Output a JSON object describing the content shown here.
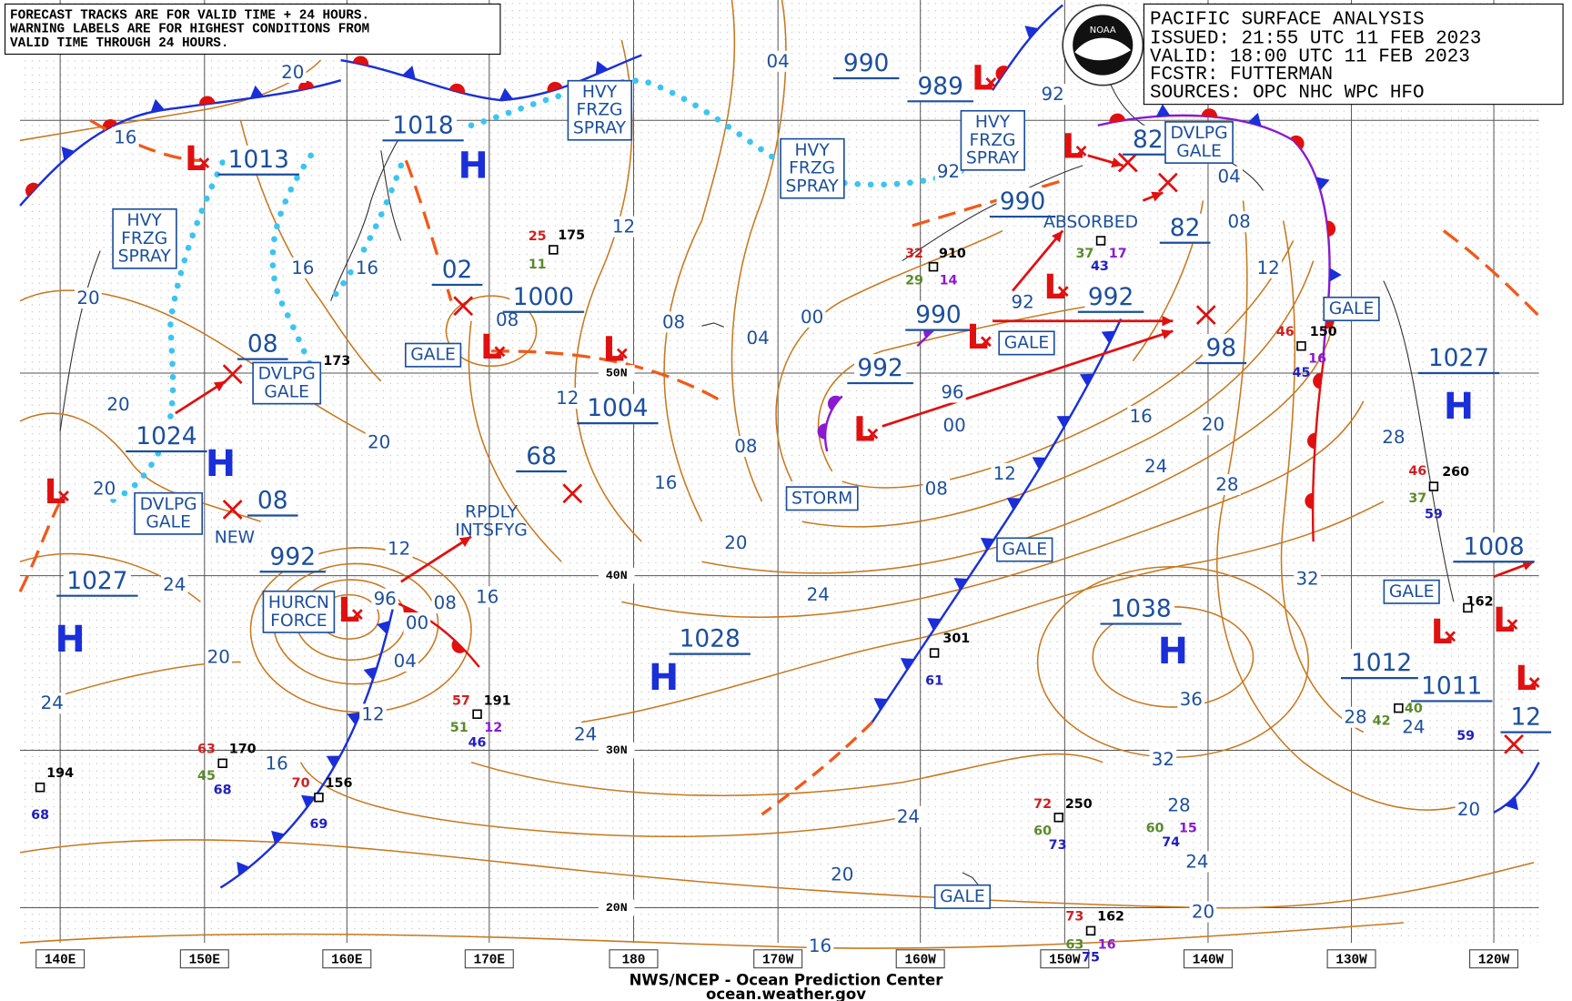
{
  "header": {
    "note": [
      "FORECAST TRACKS ARE FOR VALID TIME + 24 HOURS.",
      "WARNING LABELS ARE FOR HIGHEST CONDITIONS FROM",
      "VALID TIME THROUGH 24 HOURS."
    ],
    "title": [
      "PACIFIC SURFACE ANALYSIS",
      "ISSUED: 21:55 UTC 11 FEB 2023",
      "VALID:  18:00 UTC 11 FEB 2023",
      "FCSTR:  FUTTERMAN",
      "SOURCES: OPC NHC WPC HFO"
    ],
    "logo": "NOAA"
  },
  "centers": [
    "1013",
    "1018",
    "02",
    "1000",
    "08",
    "1024",
    "08",
    "992",
    "1027",
    "1004",
    "68",
    "1028",
    "990",
    "989",
    "990",
    "990",
    "992",
    "992",
    "82",
    "82",
    "98",
    "1027",
    "1008",
    "1038",
    "1012",
    "1011",
    "12"
  ],
  "highs": [
    "H",
    "H",
    "H",
    "H",
    "H",
    "H"
  ],
  "lows": [
    "L",
    "L",
    "L",
    "L",
    "L",
    "L",
    "L",
    "L",
    "L",
    "L",
    "L",
    "L",
    "L"
  ],
  "warnings": [
    {
      "lines": [
        "HVY",
        "FRZG",
        "SPRAY"
      ]
    },
    {
      "lines": [
        "HVY",
        "FRZG",
        "SPRAY"
      ]
    },
    {
      "lines": [
        "HVY",
        "FRZG",
        "SPRAY"
      ]
    },
    {
      "lines": [
        "HVY",
        "FRZG",
        "SPRAY"
      ]
    },
    {
      "lines": [
        "GALE"
      ]
    },
    {
      "lines": [
        "GALE"
      ]
    },
    {
      "lines": [
        "GALE"
      ]
    },
    {
      "lines": [
        "GALE"
      ]
    },
    {
      "lines": [
        "GALE"
      ]
    },
    {
      "lines": [
        "GALE"
      ]
    },
    {
      "lines": [
        "DVLPG",
        "GALE"
      ]
    },
    {
      "lines": [
        "DVLPG",
        "GALE"
      ]
    },
    {
      "lines": [
        "DVLPG",
        "GALE"
      ]
    },
    {
      "lines": [
        "STORM"
      ]
    },
    {
      "lines": [
        "HURCN",
        "FORCE"
      ]
    }
  ],
  "notes": [
    {
      "lines": [
        "RPDLY",
        "INTSFYG"
      ]
    },
    {
      "lines": [
        "ABSORBED"
      ]
    },
    {
      "lines": [
        "NEW"
      ]
    }
  ],
  "isobar_labels": [
    "20",
    "16",
    "20",
    "20",
    "16",
    "16",
    "20",
    "24",
    "20",
    "20",
    "24",
    "16",
    "12",
    "96",
    "00",
    "08",
    "16",
    "04",
    "12",
    "08",
    "12",
    "08",
    "04",
    "04",
    "00",
    "12",
    "08",
    "16",
    "20",
    "24",
    "24",
    "96",
    "00",
    "08",
    "12",
    "16",
    "20",
    "24",
    "28",
    "32",
    "36",
    "32",
    "28",
    "24",
    "24",
    "20",
    "20",
    "16",
    "20",
    "24",
    "28",
    "28",
    "12",
    "08",
    "04",
    "92",
    "92",
    "92"
  ],
  "stations": [
    {
      "text": "175",
      "color": "#000000"
    },
    {
      "text": "25",
      "color": "#d02020"
    },
    {
      "text": "11",
      "color": "#5a8a2a"
    },
    {
      "text": "173",
      "color": "#000000"
    },
    {
      "text": "910",
      "color": "#000000"
    },
    {
      "text": "32",
      "color": "#d02020"
    },
    {
      "text": "29",
      "color": "#5a8a2a"
    },
    {
      "text": "14",
      "color": "#8a1ad0"
    },
    {
      "text": "37",
      "color": "#5a8a2a"
    },
    {
      "text": "43",
      "color": "#2020c0"
    },
    {
      "text": "17",
      "color": "#8a1ad0"
    },
    {
      "text": "150",
      "color": "#000000"
    },
    {
      "text": "46",
      "color": "#d02020"
    },
    {
      "text": "45",
      "color": "#2020c0"
    },
    {
      "text": "16",
      "color": "#8a1ad0"
    },
    {
      "text": "260",
      "color": "#000000"
    },
    {
      "text": "46",
      "color": "#d02020"
    },
    {
      "text": "37",
      "color": "#5a8a2a"
    },
    {
      "text": "59",
      "color": "#2020c0"
    },
    {
      "text": "301",
      "color": "#000000"
    },
    {
      "text": "61",
      "color": "#2020c0"
    },
    {
      "text": "191",
      "color": "#000000"
    },
    {
      "text": "57",
      "color": "#d02020"
    },
    {
      "text": "51",
      "color": "#5a8a2a"
    },
    {
      "text": "12",
      "color": "#8a1ad0"
    },
    {
      "text": "46",
      "color": "#2020c0"
    },
    {
      "text": "170",
      "color": "#000000"
    },
    {
      "text": "63",
      "color": "#d02020"
    },
    {
      "text": "45",
      "color": "#5a8a2a"
    },
    {
      "text": "68",
      "color": "#2020c0"
    },
    {
      "text": "156",
      "color": "#000000"
    },
    {
      "text": "70",
      "color": "#d02020"
    },
    {
      "text": "69",
      "color": "#2020c0"
    },
    {
      "text": "194",
      "color": "#000000"
    },
    {
      "text": "68",
      "color": "#2020c0"
    },
    {
      "text": "250",
      "color": "#000000"
    },
    {
      "text": "72",
      "color": "#d02020"
    },
    {
      "text": "60",
      "color": "#5a8a2a"
    },
    {
      "text": "73",
      "color": "#2020c0"
    },
    {
      "text": "60",
      "color": "#5a8a2a"
    },
    {
      "text": "15",
      "color": "#8a1ad0"
    },
    {
      "text": "74",
      "color": "#2020c0"
    },
    {
      "text": "162",
      "color": "#000000"
    },
    {
      "text": "73",
      "color": "#d02020"
    },
    {
      "text": "63",
      "color": "#5a8a2a"
    },
    {
      "text": "16",
      "color": "#8a1ad0"
    },
    {
      "text": "75",
      "color": "#2020c0"
    },
    {
      "text": "162",
      "color": "#000000"
    },
    {
      "text": "40",
      "color": "#5a8a2a"
    },
    {
      "text": "42",
      "color": "#5a8a2a"
    },
    {
      "text": "59",
      "color": "#2020c0"
    }
  ],
  "lon_labels": [
    "140E",
    "150E",
    "160E",
    "170E",
    "180",
    "170W",
    "160W",
    "150W",
    "140W",
    "130W",
    "120W"
  ],
  "lat_labels": [
    "50N",
    "40N",
    "30N",
    "20N"
  ],
  "footer": [
    "NWS/NCEP - Ocean Prediction Center",
    "ocean.weather.gov"
  ]
}
